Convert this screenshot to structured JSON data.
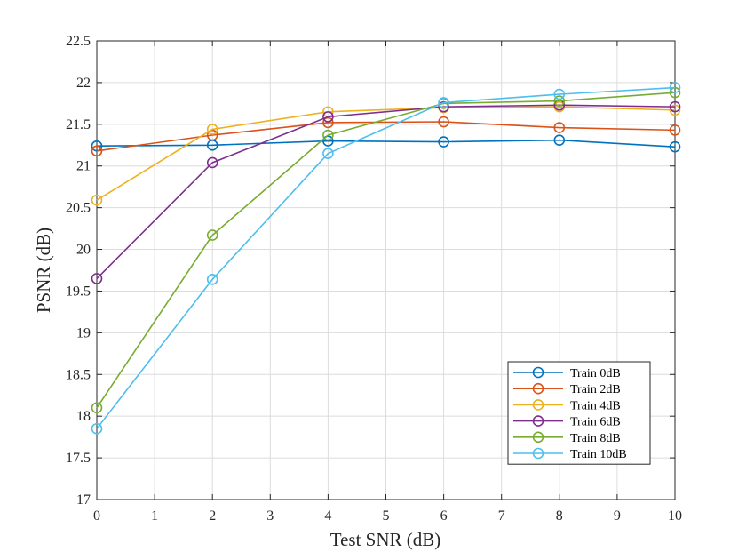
{
  "chart_data": {
    "type": "line",
    "title": "",
    "xlabel": "Test SNR (dB)",
    "ylabel": "PSNR (dB)",
    "xlim": [
      0,
      10
    ],
    "ylim": [
      17,
      22.5
    ],
    "x_ticks": [
      0,
      1,
      2,
      3,
      4,
      5,
      6,
      7,
      8,
      9,
      10
    ],
    "x_tick_labels": [
      "0",
      "1",
      "2",
      "3",
      "4",
      "5",
      "6",
      "7",
      "8",
      "9",
      "10"
    ],
    "y_ticks": [
      17,
      17.5,
      18,
      18.5,
      19,
      19.5,
      20,
      20.5,
      21,
      21.5,
      22,
      22.5
    ],
    "y_tick_labels": [
      "17",
      "17.5",
      "18",
      "18.5",
      "19",
      "19.5",
      "20",
      "20.5",
      "21",
      "21.5",
      "22",
      "22.5"
    ],
    "grid": true,
    "legend_position": "bottom-right",
    "marker": "circle",
    "x": [
      0,
      2,
      4,
      6,
      8,
      10
    ],
    "series": [
      {
        "name": "Train 0dB",
        "color": "#0072BD",
        "values": [
          21.24,
          21.25,
          21.3,
          21.29,
          21.31,
          21.23
        ]
      },
      {
        "name": "Train 2dB",
        "color": "#D95319",
        "values": [
          21.18,
          21.37,
          21.52,
          21.53,
          21.46,
          21.43
        ]
      },
      {
        "name": "Train 4dB",
        "color": "#EDB120",
        "values": [
          20.59,
          21.44,
          21.65,
          21.7,
          21.71,
          21.67
        ]
      },
      {
        "name": "Train 6dB",
        "color": "#7E2F8E",
        "values": [
          19.65,
          21.04,
          21.59,
          21.71,
          21.73,
          21.71
        ]
      },
      {
        "name": "Train 8dB",
        "color": "#77AC30",
        "values": [
          18.1,
          20.17,
          21.37,
          21.75,
          21.78,
          21.88
        ]
      },
      {
        "name": "Train 10dB",
        "color": "#4DBEEE",
        "values": [
          17.85,
          19.64,
          21.15,
          21.76,
          21.86,
          21.94
        ]
      }
    ]
  }
}
